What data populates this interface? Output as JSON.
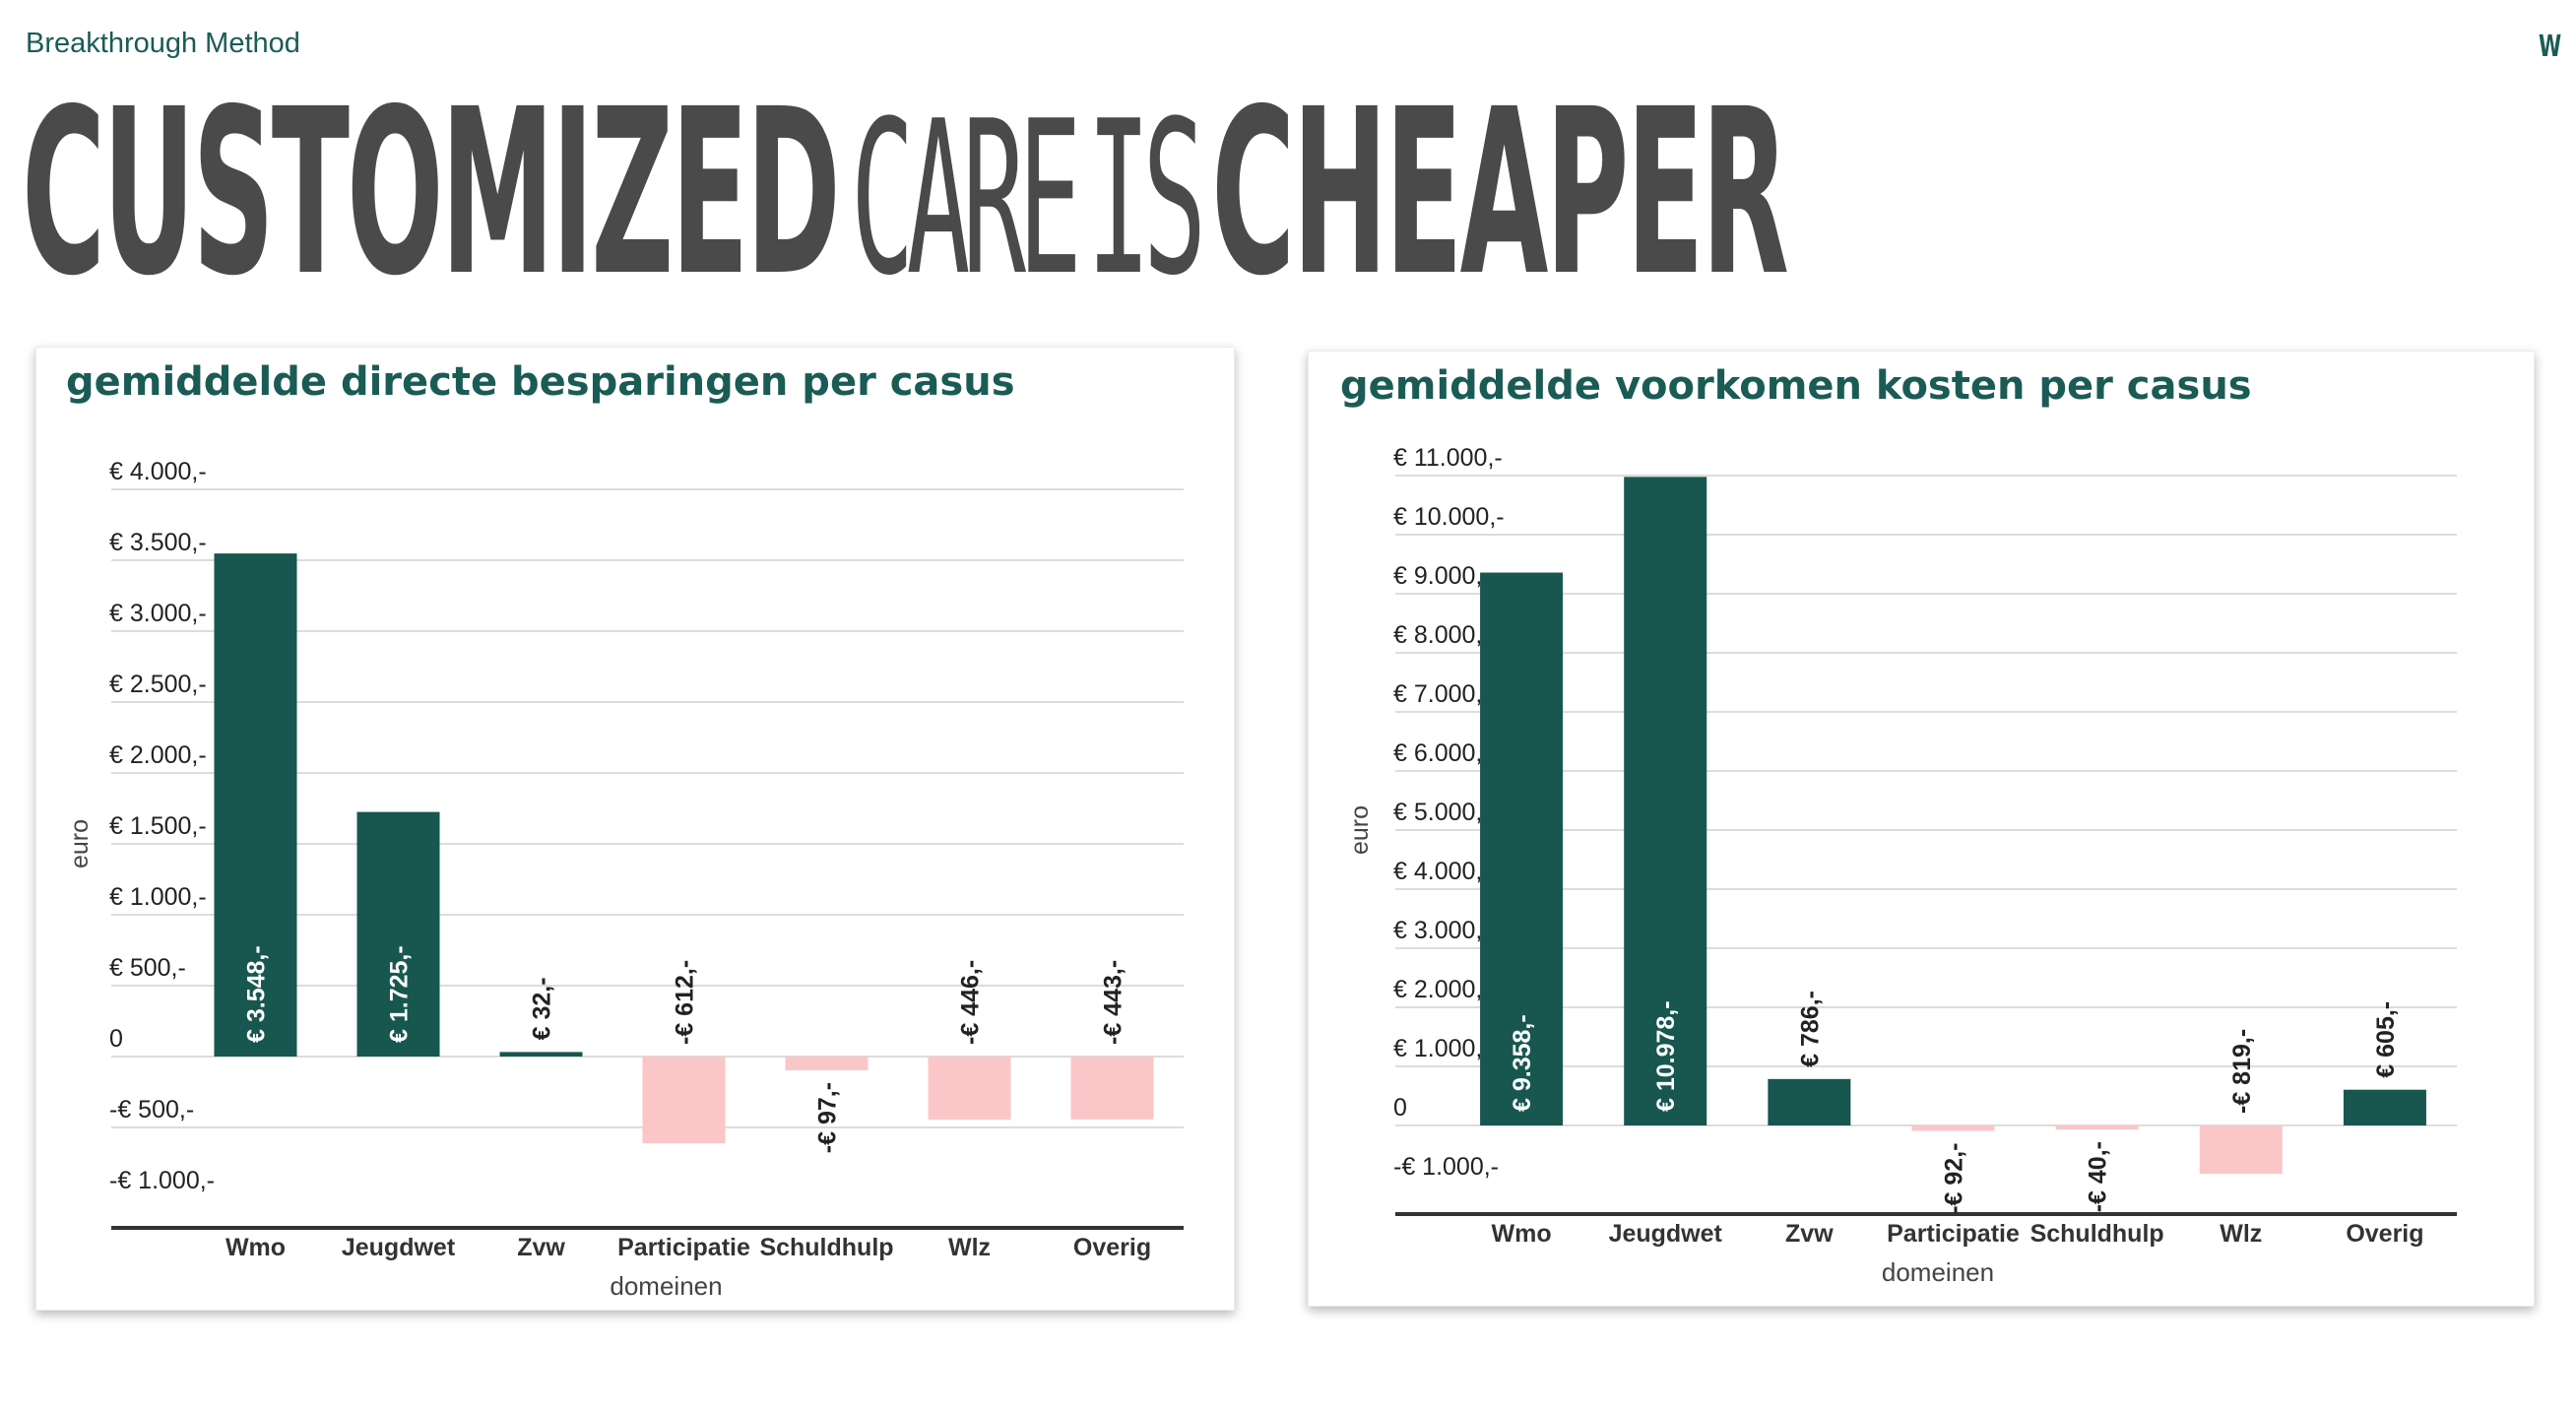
{
  "brand": "Breakthrough Method",
  "corner_logo": "W",
  "headline": {
    "part1": "CUSTOMIZED",
    "part2": "CARE",
    "part3": "IS",
    "part4": "CHEAPER"
  },
  "colors": {
    "positive": "#17574f",
    "negative": "#fbc6c8",
    "title": "#1a5c55",
    "headline": "#4a4a4a"
  },
  "chart_data": [
    {
      "type": "bar",
      "title": "gemiddelde directe besparingen per casus",
      "xlabel": "domeinen",
      "ylabel": "euro",
      "categories": [
        "Wmo",
        "Jeugdwet",
        "Zvw",
        "Participatie",
        "Schuldhulp",
        "Wlz",
        "Overig"
      ],
      "values": [
        3548,
        1725,
        32,
        -612,
        -97,
        -446,
        -443
      ],
      "data_labels": [
        "€ 3.548,-",
        "€ 1.725,-",
        "€ 32,-",
        "-€ 612,-",
        "-€ 97,-",
        "-€ 446,-",
        "-€ 443,-"
      ],
      "ylim": [
        -1000,
        4000
      ],
      "yticks": [
        4000,
        3500,
        3000,
        2500,
        2000,
        1500,
        1000,
        500,
        0,
        -500,
        -1000
      ],
      "ytick_labels": [
        "€ 4.000,-",
        "€ 3.500,-",
        "€ 3.000,-",
        "€ 2.500,-",
        "€ 2.000,-",
        "€ 1.500,-",
        "€ 1.000,-",
        "€ 500,-",
        "0",
        "-€ 500,-",
        "-€ 1.000,-"
      ],
      "grid": true,
      "legend": "none"
    },
    {
      "type": "bar",
      "title": "gemiddelde voorkomen kosten per casus",
      "xlabel": "domeinen",
      "ylabel": "euro",
      "categories": [
        "Wmo",
        "Jeugdwet",
        "Zvw",
        "Participatie",
        "Schuldhulp",
        "Wlz",
        "Overig"
      ],
      "values": [
        9358,
        10978,
        786,
        -92,
        -40,
        -819,
        605
      ],
      "data_labels": [
        "€ 9.358,-",
        "€ 10.978,-",
        "€ 786,-",
        "-€ 92,-",
        "-€ 40,-",
        "-€ 819,-",
        "€ 605,-"
      ],
      "ylim": [
        -1000,
        11000
      ],
      "yticks": [
        11000,
        10000,
        9000,
        8000,
        7000,
        6000,
        5000,
        4000,
        3000,
        2000,
        1000,
        0,
        -1000
      ],
      "ytick_labels": [
        "€ 11.000,-",
        "€ 10.000,-",
        "€ 9.000,-",
        "€ 8.000,-",
        "€ 7.000,-",
        "€ 6.000,-",
        "€ 5.000,-",
        "€ 4.000,-",
        "€ 3.000,-",
        "€ 2.000,-",
        "€ 1.000,-",
        "0",
        "-€ 1.000,-"
      ],
      "grid": true,
      "legend": "none"
    }
  ]
}
